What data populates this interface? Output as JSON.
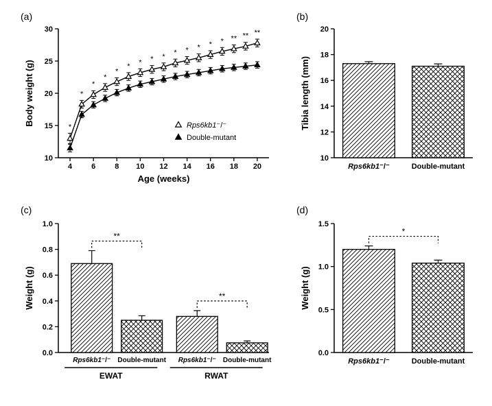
{
  "panel_labels": {
    "a": "(a)",
    "b": "(b)",
    "c": "(c)",
    "d": "(d)"
  },
  "colors": {
    "axis": "#000000",
    "text": "#000000",
    "grid": "none",
    "bar_fill": "#ffffff",
    "bar_stroke": "#000000",
    "line": "#000000",
    "sig_line": "#000000"
  },
  "panelA": {
    "type": "line",
    "title": "",
    "xlabel": "Age (weeks)",
    "ylabel": "Body weight (g)",
    "label_fontsize": 13,
    "tick_fontsize": 11,
    "xlim": [
      3,
      21
    ],
    "ylim": [
      10,
      30
    ],
    "xticks": [
      4,
      6,
      8,
      10,
      12,
      14,
      16,
      18,
      20
    ],
    "yticks": [
      10,
      15,
      20,
      25,
      30
    ],
    "legend": {
      "entries": [
        {
          "label": "Rps6kb1⁻/⁻",
          "marker": "triangle-open",
          "italic_part": "Rps6kb1"
        },
        {
          "label": "Double-mutant",
          "marker": "triangle-filled"
        }
      ]
    },
    "series": [
      {
        "name": "Rps6kb1-/-",
        "marker": "triangle-open",
        "x": [
          4,
          5,
          6,
          7,
          8,
          9,
          10,
          11,
          12,
          13,
          14,
          15,
          16,
          17,
          18,
          19,
          20
        ],
        "y": [
          13.0,
          18.3,
          19.8,
          20.9,
          21.8,
          22.6,
          23.2,
          23.7,
          24.1,
          24.7,
          25.1,
          25.5,
          26.0,
          26.5,
          26.9,
          27.3,
          27.8
        ],
        "err": [
          0.8,
          0.6,
          0.6,
          0.6,
          0.6,
          0.6,
          0.6,
          0.6,
          0.6,
          0.6,
          0.6,
          0.6,
          0.6,
          0.6,
          0.6,
          0.6,
          0.6
        ]
      },
      {
        "name": "Double-mutant",
        "marker": "triangle-filled",
        "x": [
          4,
          5,
          6,
          7,
          8,
          9,
          10,
          11,
          12,
          13,
          14,
          15,
          16,
          17,
          18,
          19,
          20
        ],
        "y": [
          11.5,
          16.7,
          18.2,
          19.2,
          20.1,
          20.8,
          21.4,
          21.8,
          22.2,
          22.6,
          22.9,
          23.2,
          23.5,
          23.8,
          24.0,
          24.2,
          24.4
        ],
        "err": [
          0.6,
          0.5,
          0.5,
          0.5,
          0.5,
          0.5,
          0.5,
          0.5,
          0.5,
          0.5,
          0.5,
          0.5,
          0.5,
          0.5,
          0.5,
          0.5,
          0.5
        ]
      }
    ],
    "significance": [
      "*",
      "*",
      "*",
      "*",
      "*",
      "*",
      "*",
      "*",
      "*",
      "*",
      "*",
      "*",
      "*",
      "*",
      "**",
      "**",
      "**"
    ]
  },
  "panelB": {
    "type": "bar",
    "ylabel": "Tibia length (mm)",
    "label_fontsize": 13,
    "tick_fontsize": 11,
    "ylim": [
      10,
      20
    ],
    "yticks": [
      10,
      12,
      14,
      16,
      18,
      20
    ],
    "categories": [
      {
        "label": "Rps6kb1⁻/⁻",
        "italic_part": "Rps6kb1",
        "pattern": "hatch-right"
      },
      {
        "label": "Double-mutant",
        "pattern": "crosshatch"
      }
    ],
    "values": [
      17.3,
      17.1
    ],
    "err": [
      0.15,
      0.18
    ],
    "bar_width": 0.75
  },
  "panelC": {
    "type": "bar-grouped",
    "ylabel": "Weight (g)",
    "label_fontsize": 13,
    "tick_fontsize": 11,
    "ylim": [
      0,
      1.0
    ],
    "yticks": [
      0.0,
      0.2,
      0.4,
      0.6,
      0.8,
      1.0
    ],
    "groups": [
      "EWAT",
      "RWAT"
    ],
    "categories": [
      {
        "label": "Rps6kb1⁻/⁻",
        "italic_part": "Rps6kb1",
        "pattern": "hatch-right"
      },
      {
        "label": "Double-mutant",
        "pattern": "crosshatch"
      }
    ],
    "values": [
      [
        0.69,
        0.25
      ],
      [
        0.28,
        0.075
      ]
    ],
    "err": [
      [
        0.1,
        0.035
      ],
      [
        0.045,
        0.015
      ]
    ],
    "significance": [
      "**",
      "**"
    ],
    "bar_width": 0.82
  },
  "panelD": {
    "type": "bar",
    "ylabel": "Weight (g)",
    "label_fontsize": 13,
    "tick_fontsize": 11,
    "ylim": [
      0,
      1.5
    ],
    "yticks": [
      0.0,
      0.5,
      1.0,
      1.5
    ],
    "categories": [
      {
        "label": "Rps6kb1⁻/⁻",
        "italic_part": "Rps6kb1",
        "pattern": "hatch-right"
      },
      {
        "label": "Double-mutant",
        "pattern": "crosshatch"
      }
    ],
    "values": [
      1.2,
      1.04
    ],
    "err": [
      0.04,
      0.035
    ],
    "significance": "*",
    "bar_width": 0.75
  }
}
